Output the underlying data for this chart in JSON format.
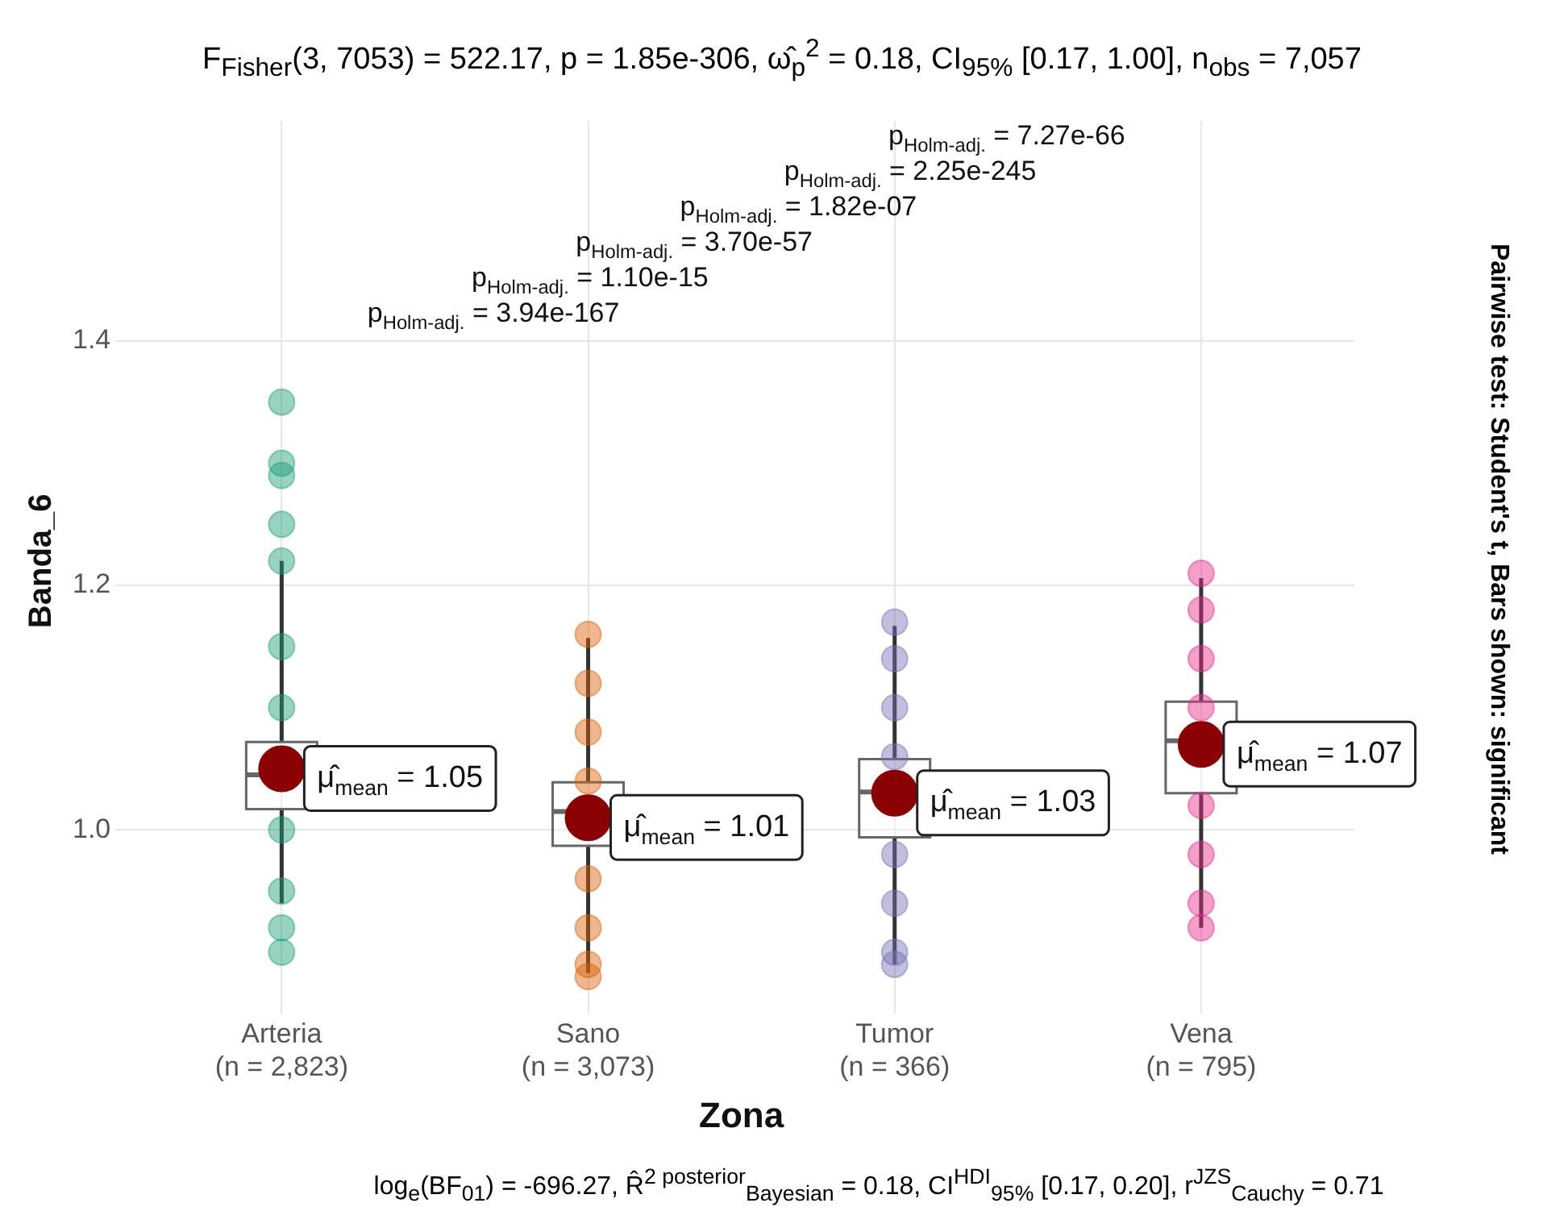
{
  "chart_data": {
    "type": "box",
    "title": "F$_{Fisher}$(3, 7053) = 522.17, p = 1.85e-306, ω̂$_{p}$$^{2}$ = 0.18, CI$_{95%}$ [0.17, 1.00], n$_{obs}$ = 7,057",
    "xlabel": "Zona",
    "ylabel": "Banda_6",
    "categories": [
      "Arteria\n(n = 2,823)",
      "Sano\n(n = 3,073)",
      "Tumor\n(n = 366)",
      "Vena\n(n = 795)"
    ],
    "boxes": [
      {
        "low": 0.94,
        "q1": 1.017,
        "median": 1.045,
        "q3": 1.072,
        "high": 1.22
      },
      {
        "low": 0.883,
        "q1": 0.987,
        "median": 1.015,
        "q3": 1.039,
        "high": 1.157
      },
      {
        "low": 0.89,
        "q1": 0.994,
        "median": 1.031,
        "q3": 1.058,
        "high": 1.167
      },
      {
        "low": 0.92,
        "q1": 1.03,
        "median": 1.073,
        "q3": 1.105,
        "high": 1.206
      }
    ],
    "series": [
      {
        "type": "scatter",
        "color": "#1b9e77",
        "x": [
          "Arteria\n(n = 2,823)",
          "Arteria\n(n = 2,823)",
          "Arteria\n(n = 2,823)",
          "Arteria\n(n = 2,823)",
          "Arteria\n(n = 2,823)",
          "Arteria\n(n = 2,823)",
          "Arteria\n(n = 2,823)",
          "Arteria\n(n = 2,823)",
          "Arteria\n(n = 2,823)",
          "Arteria\n(n = 2,823)",
          "Arteria\n(n = 2,823)"
        ],
        "values": [
          1.35,
          1.3,
          1.29,
          1.25,
          1.22,
          1.15,
          1.1,
          1.0,
          0.95,
          0.92,
          0.9
        ]
      },
      {
        "type": "scatter",
        "color": "#d95f02",
        "x": [
          "Sano\n(n = 3,073)",
          "Sano\n(n = 3,073)",
          "Sano\n(n = 3,073)",
          "Sano\n(n = 3,073)",
          "Sano\n(n = 3,073)",
          "Sano\n(n = 3,073)",
          "Sano\n(n = 3,073)",
          "Sano\n(n = 3,073)"
        ],
        "values": [
          1.16,
          1.12,
          1.08,
          1.04,
          0.96,
          0.92,
          0.89,
          0.88
        ]
      },
      {
        "type": "scatter",
        "color": "#7570b3",
        "x": [
          "Tumor\n(n = 366)",
          "Tumor\n(n = 366)",
          "Tumor\n(n = 366)",
          "Tumor\n(n = 366)",
          "Tumor\n(n = 366)",
          "Tumor\n(n = 366)",
          "Tumor\n(n = 366)",
          "Tumor\n(n = 366)"
        ],
        "values": [
          1.17,
          1.14,
          1.1,
          1.06,
          0.98,
          0.94,
          0.9,
          0.89
        ]
      },
      {
        "type": "scatter",
        "color": "#e7298a",
        "x": [
          "Vena\n(n = 795)",
          "Vena\n(n = 795)",
          "Vena\n(n = 795)",
          "Vena\n(n = 795)",
          "Vena\n(n = 795)",
          "Vena\n(n = 795)",
          "Vena\n(n = 795)",
          "Vena\n(n = 795)"
        ],
        "values": [
          1.21,
          1.18,
          1.14,
          1.1,
          1.02,
          0.98,
          0.94,
          0.92
        ]
      },
      {
        "type": "scatter",
        "color": "#8b0000",
        "x": [
          "Arteria\n(n = 2,823)",
          "Sano\n(n = 3,073)",
          "Tumor\n(n = 366)",
          "Vena\n(n = 795)"
        ],
        "values": [
          1.05,
          1.01,
          1.03,
          1.07
        ],
        "value_labels": [
          "μ̂$_{mean}$ = 1.05",
          "μ̂$_{mean}$ = 1.01",
          "μ̂$_{mean}$ = 1.03",
          "μ̂$_{mean}$ = 1.07"
        ]
      }
    ],
    "ylim": [
      0.86,
      1.58
    ],
    "yticks": [
      {
        "value": 1.0,
        "label": "1.0"
      },
      {
        "value": 1.2,
        "label": "1.2"
      },
      {
        "value": 1.4,
        "label": "1.4"
      }
    ],
    "grid": true,
    "legend": false,
    "marker": "circle",
    "annotations": [
      "p$_{Holm-adj.}$ = 7.27e-66",
      "p$_{Holm-adj.}$ = 2.25e-245",
      "p$_{Holm-adj.}$ = 1.82e-07",
      "p$_{Holm-adj.}$ = 3.70e-57",
      "p$_{Holm-adj.}$ = 1.10e-15",
      "p$_{Holm-adj.}$ = 3.94e-167",
      "Pairwise test: Student's t, Bars shown: significant",
      "log$_{e}$(BF$_{01}$) = -696.27, R̂$^{2 posterior}$$_{Bayesian}$ = 0.18, CI$^{HDI}$$_{95%}$ [0.17, 0.20], r$^{JZS}$$_{Cauchy}$ = 0.71"
    ]
  }
}
